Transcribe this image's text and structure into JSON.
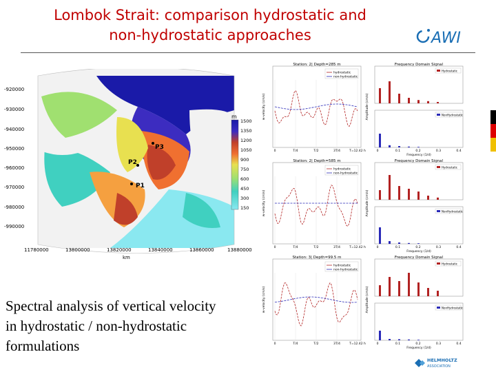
{
  "title": {
    "line1": "Lombok Strait: comparison hydrostatic and",
    "line2": "non-hydrostatic approaches"
  },
  "caption": {
    "line1": "Spectral analysis of vertical velocity",
    "line2": "in hydrostatic / non-hydrostatic",
    "line3": "formulations"
  },
  "logos": {
    "awi": "AWI",
    "helmholtz": "HELMHOLTZ",
    "helmholtz_sub": "ASSOCIATION"
  },
  "map": {
    "y_ticks": [
      "-920000",
      "-930000",
      "-940000",
      "-950000",
      "-960000",
      "-970000",
      "-980000",
      "-990000"
    ],
    "x_ticks": [
      "11780000",
      "13800000",
      "13820000",
      "13840000",
      "13860000",
      "13880000"
    ],
    "x_unit": "km",
    "colorbar_unit": "m",
    "colorbar_labels": [
      "1500",
      "1350",
      "1200",
      "1050",
      "900",
      "750",
      "600",
      "450",
      "300",
      "150"
    ],
    "points": [
      "P3",
      "P2",
      "P1"
    ],
    "depth_colors": [
      "#1a1aa8",
      "#3c2cc0",
      "#7a2a9a",
      "#c0402a",
      "#f07030",
      "#f5a040",
      "#e8e050",
      "#a0e070",
      "#40d0c0",
      "#8ae8f0"
    ]
  },
  "panels": [
    {
      "ts_title": "Station: 2| Depth=285 m",
      "fd_title": "Frequency Domain Signal",
      "ts_legend": [
        "hydrostatic",
        "non-hydrostatic"
      ],
      "fd_legend_top": "Hydrostatic",
      "fd_legend_bottom": "NonHydrostatic",
      "ts_ylabel": "w-velocity (cm/s)",
      "fd_ylabel": "Amplitude (cm/s)",
      "fd_xlabel": "Frequency (1/d)",
      "ts_xticks": [
        "0",
        "T/4",
        "T/2",
        "3T/4",
        "T=12.42 h"
      ],
      "fd_xticks": [
        "0",
        "0.1",
        "0.2",
        "0.3",
        "0.4"
      ],
      "hydro_bars": [
        0.55,
        0.8,
        0.35,
        0.2,
        0.12,
        0.08,
        0.05
      ],
      "nonhydro_bars": [
        0.5,
        0.08,
        0.05,
        0.03,
        0.02
      ]
    },
    {
      "ts_title": "Station: 2| Depth=585 m",
      "fd_title": "Frequency Domain Signal",
      "ts_legend": [
        "hydrostatic",
        "non-hydrostatic"
      ],
      "fd_legend_top": "Hydrostatic",
      "fd_legend_bottom": "NonHydrostatic",
      "ts_ylabel": "w-velocity (cm/s)",
      "fd_ylabel": "Amplitude (cm/s)",
      "fd_xlabel": "Frequency (1/d)",
      "ts_xticks": [
        "0",
        "T/4",
        "T/2",
        "3T/4",
        "T=12.42 h"
      ],
      "fd_xticks": [
        "0",
        "0.1",
        "0.2",
        "0.3",
        "0.4"
      ],
      "hydro_bars": [
        0.35,
        0.9,
        0.5,
        0.4,
        0.3,
        0.15,
        0.08
      ],
      "nonhydro_bars": [
        0.6,
        0.1,
        0.05,
        0.03,
        0.02
      ]
    },
    {
      "ts_title": "Station: 3| Depth=99.5 m",
      "fd_title": "Frequency Domain Signal",
      "ts_legend": [
        "hydrostatic",
        "non-hydrostatic"
      ],
      "fd_legend_top": "Hydrostatic",
      "fd_legend_bottom": "NonHydrostatic",
      "ts_ylabel": "w-velocity (cm/s)",
      "fd_ylabel": "Amplitude (cm/s)",
      "fd_xlabel": "Frequency (1/d)",
      "ts_xticks": [
        "0",
        "T/4",
        "T/2",
        "3T/4",
        "T=12.42 h"
      ],
      "fd_xticks": [
        "0",
        "0.1",
        "0.2",
        "0.3",
        "0.4"
      ],
      "hydro_bars": [
        0.4,
        0.7,
        0.55,
        0.85,
        0.5,
        0.3,
        0.2
      ],
      "nonhydro_bars": [
        0.35,
        0.05,
        0.04,
        0.03,
        0.02
      ]
    }
  ],
  "colors": {
    "title": "#c00000",
    "hydro": "#b22222",
    "nonhydro": "#2a2ab8"
  }
}
